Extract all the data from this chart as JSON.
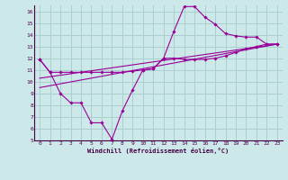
{
  "xlabel": "Windchill (Refroidissement éolien,°C)",
  "bg_color": "#cce8e8",
  "grid_color": "#aacece",
  "line_color": "#990099",
  "xlim": [
    -0.5,
    23.5
  ],
  "ylim": [
    5,
    16.5
  ],
  "xticks": [
    0,
    1,
    2,
    3,
    4,
    5,
    6,
    7,
    8,
    9,
    10,
    11,
    12,
    13,
    14,
    15,
    16,
    17,
    18,
    19,
    20,
    21,
    22,
    23
  ],
  "yticks": [
    5,
    6,
    7,
    8,
    9,
    10,
    11,
    12,
    13,
    14,
    15,
    16
  ],
  "line1_x": [
    0,
    1,
    2,
    3,
    4,
    5,
    6,
    7,
    8,
    9,
    10,
    11,
    12,
    13,
    14,
    15,
    16,
    17,
    18,
    19,
    20,
    21,
    22,
    23
  ],
  "line1_y": [
    11.9,
    10.8,
    9.0,
    8.2,
    8.2,
    6.5,
    6.5,
    5.1,
    7.5,
    9.3,
    11.0,
    11.1,
    12.0,
    14.3,
    16.4,
    16.4,
    15.5,
    14.9,
    14.1,
    13.9,
    13.8,
    13.8,
    13.2,
    13.2
  ],
  "line2_x": [
    0,
    1,
    2,
    3,
    4,
    5,
    6,
    7,
    8,
    9,
    10,
    11,
    12,
    13,
    14,
    15,
    16,
    17,
    18,
    19,
    20,
    21,
    22,
    23
  ],
  "line2_y": [
    11.9,
    10.8,
    10.8,
    10.8,
    10.8,
    10.8,
    10.8,
    10.8,
    10.8,
    10.9,
    11.0,
    11.1,
    12.0,
    12.0,
    11.9,
    11.9,
    11.9,
    12.0,
    12.2,
    12.5,
    12.8,
    13.0,
    13.2,
    13.2
  ],
  "line3_x": [
    0,
    23
  ],
  "line3_y": [
    10.3,
    13.2
  ],
  "line4_x": [
    0,
    23
  ],
  "line4_y": [
    9.5,
    13.2
  ]
}
